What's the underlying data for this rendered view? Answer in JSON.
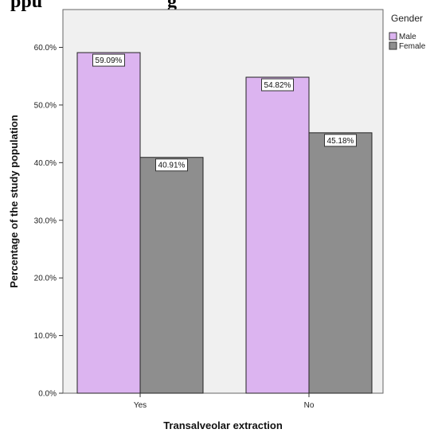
{
  "heading_fragment": "ppu",
  "heading_fragment_2": "g",
  "chart_data": {
    "type": "bar",
    "categories": [
      "Yes",
      "No"
    ],
    "series": [
      {
        "name": "Male",
        "values": [
          59.09,
          54.82
        ]
      },
      {
        "name": "Female",
        "values": [
          40.91,
          45.18
        ]
      }
    ],
    "data_labels": [
      [
        "59.09%",
        "54.82%"
      ],
      [
        "40.91%",
        "45.18%"
      ]
    ],
    "title": "",
    "xlabel": "Transalveolar extraction",
    "ylabel": "Percentage of the study population",
    "ylim": [
      0,
      65
    ],
    "yticks": [
      0,
      10,
      20,
      30,
      40,
      50,
      60
    ],
    "ytick_labels": [
      "0.0%",
      "10.0%",
      "20.0%",
      "30.0%",
      "40.0%",
      "50.0%",
      "60.0%"
    ],
    "legend_title": "Gender",
    "legend_placement": "top-right",
    "grid": false,
    "plot_background": "#f0f0f0",
    "colors": {
      "Male": "#dcb4f0",
      "Female": "#8e8e8e"
    }
  }
}
